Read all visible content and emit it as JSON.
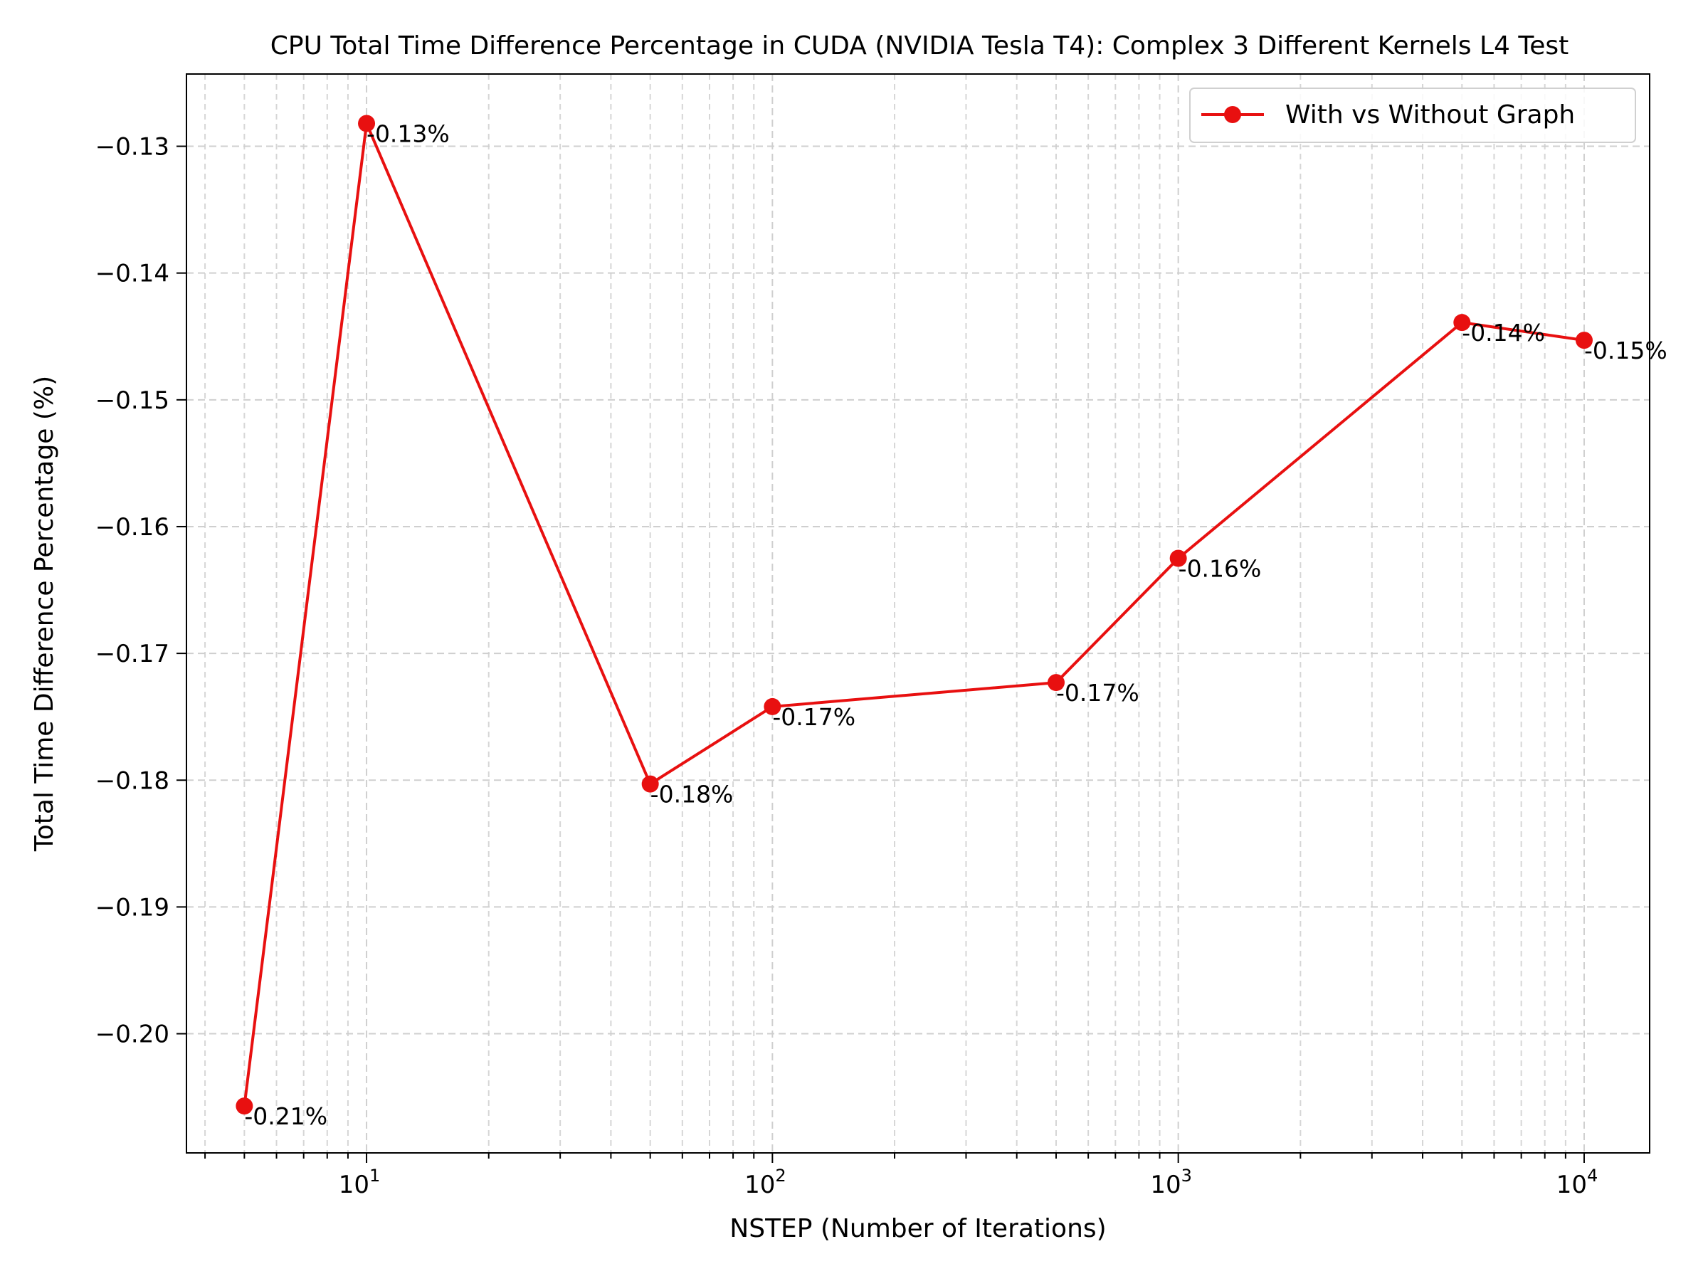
{
  "chart_data": {
    "type": "line",
    "title": "CPU Total Time Difference Percentage in CUDA (NVIDIA Tesla T4): Complex 3 Different Kernels L4 Test",
    "xlabel": "NSTEP (Number of Iterations)",
    "ylabel": "Total Time Difference Percentage (%)",
    "x_scale": "log",
    "xlim": [
      3.6,
      14500
    ],
    "ylim": [
      -0.2094,
      -0.1243
    ],
    "grid": true,
    "grid_style": "dashed",
    "legend_position": "top-right",
    "x": [
      5,
      10,
      50,
      100,
      500,
      1000,
      5000,
      10000
    ],
    "series": [
      {
        "name": "With vs Without Graph",
        "color": "#e81010",
        "marker": "circle",
        "values": [
          -0.2057,
          -0.1282,
          -0.1803,
          -0.1742,
          -0.1723,
          -0.1625,
          -0.1439,
          -0.1453
        ]
      }
    ],
    "data_labels": [
      "-0.21%",
      "-0.13%",
      "-0.18%",
      "-0.17%",
      "-0.17%",
      "-0.16%",
      "-0.14%",
      "-0.15%"
    ],
    "y_ticks": [
      {
        "value": -0.13,
        "label": "−0.13"
      },
      {
        "value": -0.14,
        "label": "−0.14"
      },
      {
        "value": -0.15,
        "label": "−0.15"
      },
      {
        "value": -0.16,
        "label": "−0.16"
      },
      {
        "value": -0.17,
        "label": "−0.17"
      },
      {
        "value": -0.18,
        "label": "−0.18"
      },
      {
        "value": -0.19,
        "label": "−0.19"
      },
      {
        "value": -0.2,
        "label": "−0.20"
      }
    ],
    "x_ticks": [
      {
        "value": 10,
        "base": "10",
        "exp": "1"
      },
      {
        "value": 100,
        "base": "10",
        "exp": "2"
      },
      {
        "value": 1000,
        "base": "10",
        "exp": "3"
      },
      {
        "value": 10000,
        "base": "10",
        "exp": "4"
      }
    ]
  }
}
